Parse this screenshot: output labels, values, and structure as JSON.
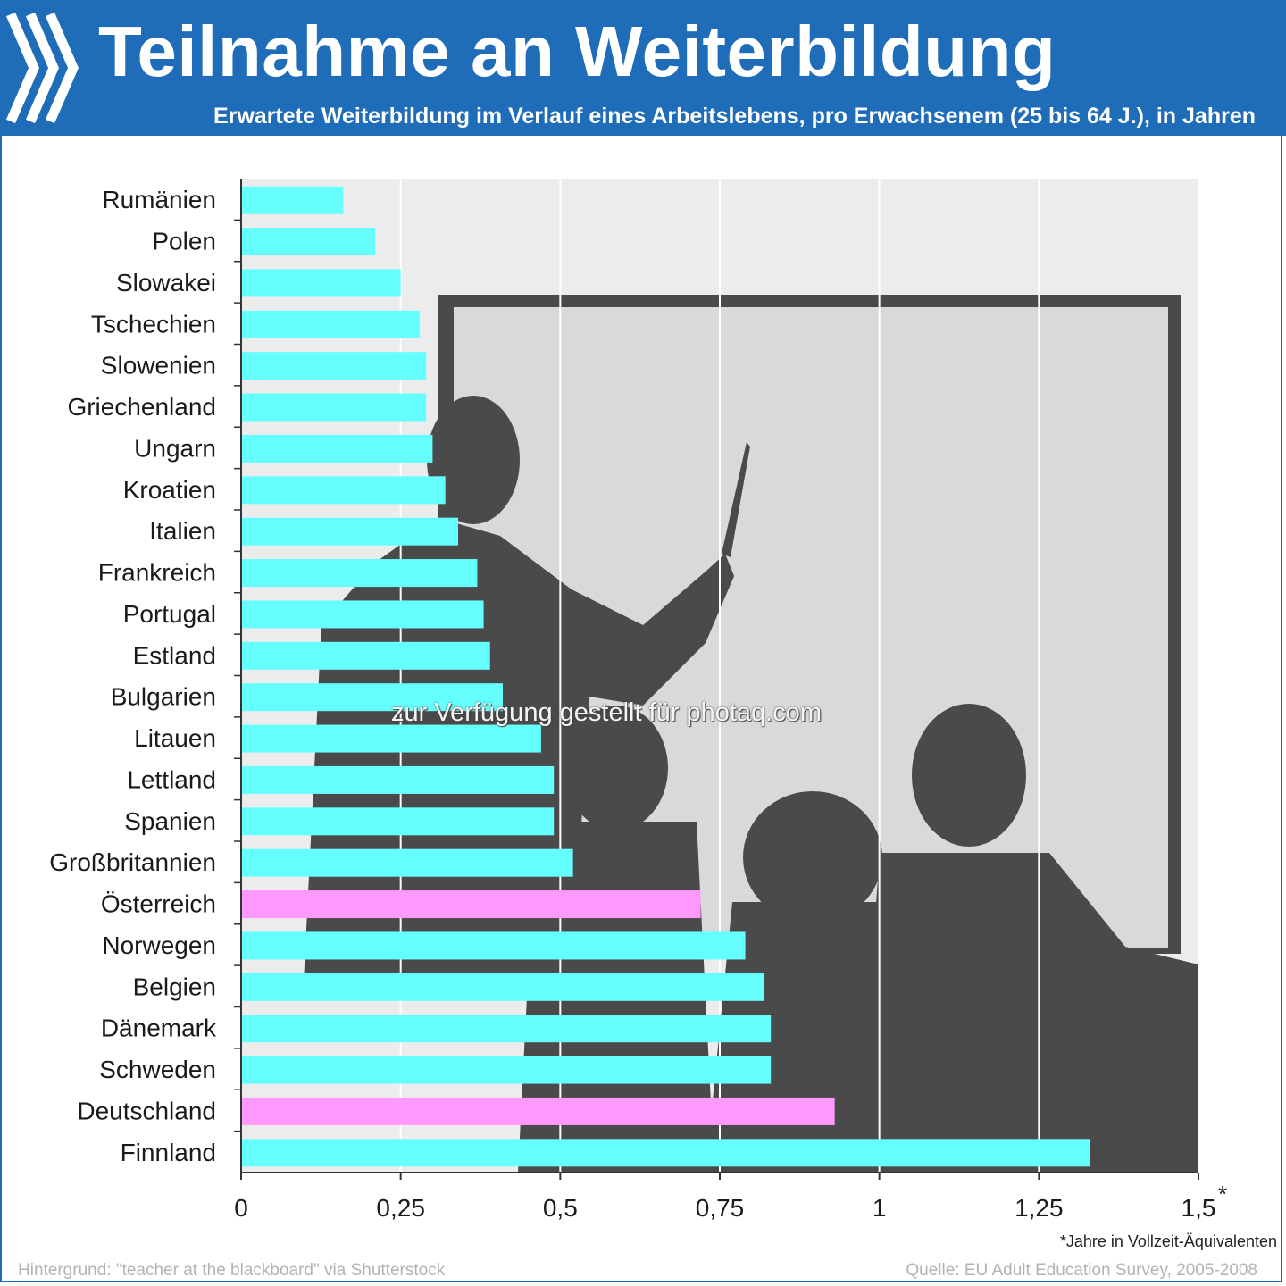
{
  "header": {
    "title": "Teilnahme an Weiterbildung",
    "subtitle": "Erwartete Weiterbildung im Verlauf eines Arbeitslebens, pro Erwachsenem (25 bis 64 J.), in Jahren"
  },
  "chart_data": {
    "type": "bar",
    "orientation": "horizontal",
    "title": "Teilnahme an Weiterbildung",
    "subtitle": "Erwartete Weiterbildung im Verlauf eines Arbeitslebens, pro Erwachsenem (25 bis 64 J.), in Jahren",
    "categories": [
      "Rumänien",
      "Polen",
      "Slowakei",
      "Tschechien",
      "Slowenien",
      "Griechenland",
      "Ungarn",
      "Kroatien",
      "Italien",
      "Frankreich",
      "Portugal",
      "Estland",
      "Bulgarien",
      "Litauen",
      "Lettland",
      "Spanien",
      "Großbritannien",
      "Österreich",
      "Norwegen",
      "Belgien",
      "Dänemark",
      "Schweden",
      "Deutschland",
      "Finnland"
    ],
    "values": [
      0.16,
      0.21,
      0.25,
      0.28,
      0.29,
      0.29,
      0.3,
      0.32,
      0.34,
      0.37,
      0.38,
      0.39,
      0.41,
      0.47,
      0.49,
      0.49,
      0.52,
      0.72,
      0.79,
      0.82,
      0.83,
      0.83,
      0.93,
      1.33
    ],
    "highlight": [
      "Österreich",
      "Deutschland"
    ],
    "xlim": [
      0,
      1.5
    ],
    "ticks": [
      0,
      0.25,
      0.5,
      0.75,
      1,
      1.25,
      1.5
    ],
    "tick_labels": [
      "0",
      "0,25",
      "0,5",
      "0,75",
      "1",
      "1,25",
      "1,5"
    ],
    "tick_marker": "*",
    "grid": true,
    "colors": {
      "bar": "#66ffff",
      "highlight": "#ff99ff"
    }
  },
  "footnote": "*Jahre in Vollzeit-Äquivalenten",
  "credits": {
    "background": "Hintergrund: \"teacher at the blackboard\" via Shutterstock",
    "source": "Quelle: EU Adult Education Survey, 2005-2008"
  },
  "watermark": "zur Verfügung gestellt für photaq.com",
  "colors": {
    "brand": "#1f6db8"
  }
}
